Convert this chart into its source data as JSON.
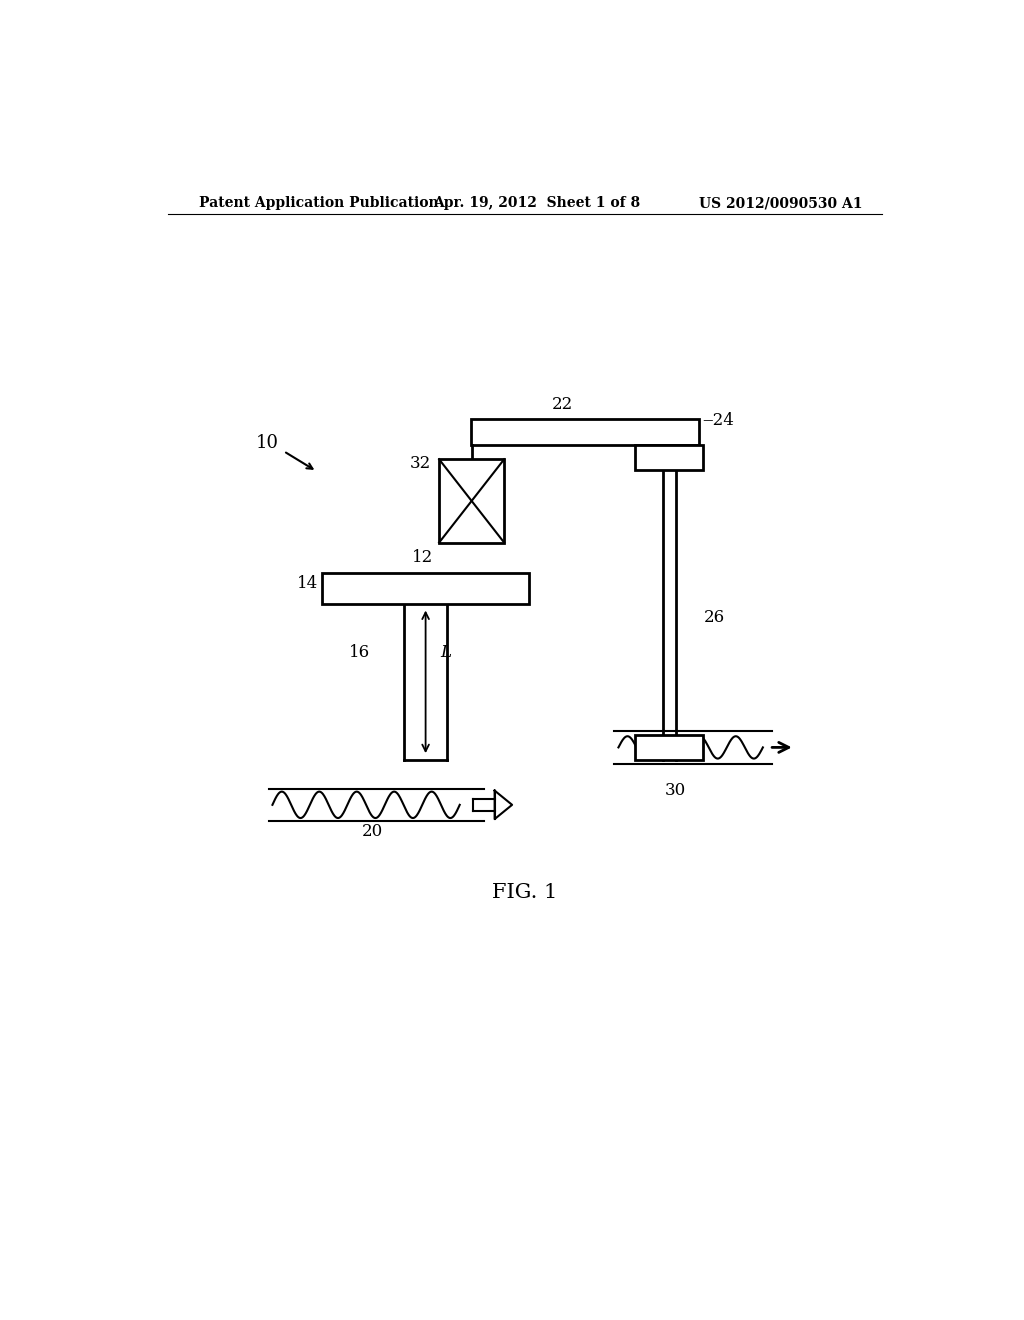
{
  "bg_color": "#ffffff",
  "header_left": "Patent Application Publication",
  "header_mid": "Apr. 19, 2012  Sheet 1 of 8",
  "header_right": "US 2012/0090530 A1",
  "fig_label": "FIG. 1",
  "lw": 2.0,
  "color": "#000000"
}
